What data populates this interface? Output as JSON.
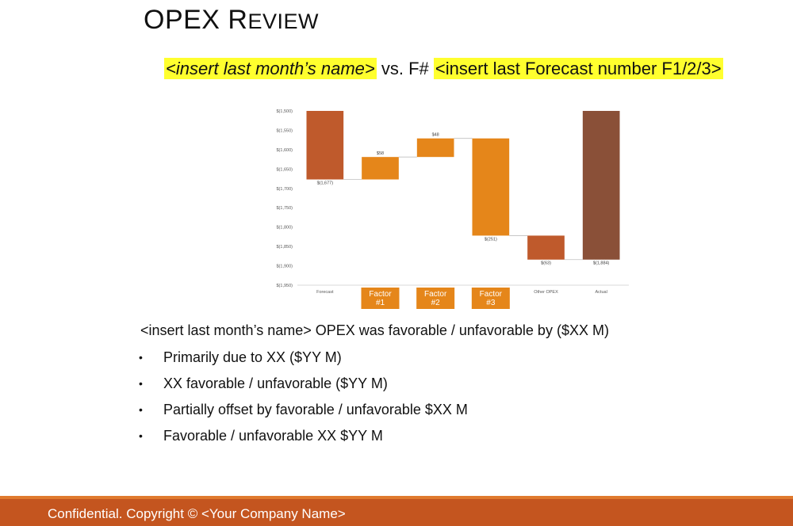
{
  "slide": {
    "title_first": "OPEX R",
    "title_rest": "EVIEW",
    "subtitle_month": "<insert last month’s name>",
    "subtitle_vs": "vs. F#",
    "subtitle_forecast": "<insert last Forecast number F1/2/3>"
  },
  "summary": "<insert last month’s name> OPEX was favorable / unfavorable by ($XX M)",
  "bullets": [
    "Primarily due to XX ($YY M)",
    "XX favorable / unfavorable ($YY M)",
    "Partially offset by favorable / unfavorable $XX M",
    "Favorable / unfavorable XX $YY M"
  ],
  "bullet_symbol": "•",
  "footer": "Confidential. Copyright © <Your Company Name>",
  "colors": {
    "bar_dark_orange": "#bf5a2c",
    "bar_orange": "#e5861a",
    "bar_actual": "#8a5038",
    "highlight": "#ffff2e",
    "footer": "#c4551f",
    "category_box": "#e5861a"
  },
  "chart_data": {
    "type": "bar",
    "subtype": "waterfall",
    "categories": [
      "Forecast",
      "Factor #1",
      "Factor #2",
      "Factor #3",
      "Other OPEX",
      "Actual"
    ],
    "bars": [
      {
        "category": "Forecast",
        "from": 1500,
        "to": 1677,
        "label": "$(1,677)",
        "kind": "total",
        "highlight": false
      },
      {
        "category": "Factor #1",
        "from": 1677,
        "to": 1619,
        "label": "$58",
        "kind": "delta",
        "highlight": true
      },
      {
        "category": "Factor #2",
        "from": 1619,
        "to": 1571,
        "label": "$48",
        "kind": "delta",
        "highlight": true
      },
      {
        "category": "Factor #3",
        "from": 1571,
        "to": 1822,
        "label": "$(251)",
        "kind": "delta",
        "highlight": true
      },
      {
        "category": "Other OPEX",
        "from": 1822,
        "to": 1884,
        "label": "$(63)",
        "kind": "delta",
        "highlight": false
      },
      {
        "category": "Actual",
        "from": 1500,
        "to": 1884,
        "label": "$(1,884)",
        "kind": "total",
        "highlight": false
      }
    ],
    "y_ticks": [
      1500,
      1550,
      1600,
      1650,
      1700,
      1750,
      1800,
      1850,
      1900,
      1950
    ],
    "y_tick_labels": [
      "$(1,500)",
      "$(1,550)",
      "$(1,600)",
      "$(1,650)",
      "$(1,700)",
      "$(1,750)",
      "$(1,800)",
      "$(1,850)",
      "$(1,900)",
      "$(1,950)"
    ],
    "ylim": [
      1500,
      1950
    ],
    "y_inverted": true,
    "category_labels": [
      {
        "lines": [
          "Forecast"
        ],
        "boxed": false
      },
      {
        "lines": [
          "Factor",
          "#1"
        ],
        "boxed": true
      },
      {
        "lines": [
          "Factor",
          "#2"
        ],
        "boxed": true
      },
      {
        "lines": [
          "Factor",
          "#3"
        ],
        "boxed": true
      },
      {
        "lines": [
          "Other OPEX"
        ],
        "boxed": false
      },
      {
        "lines": [
          "Actual"
        ],
        "boxed": false
      }
    ],
    "grid": false,
    "legend": "none",
    "title": "",
    "xlabel": "",
    "ylabel": ""
  }
}
